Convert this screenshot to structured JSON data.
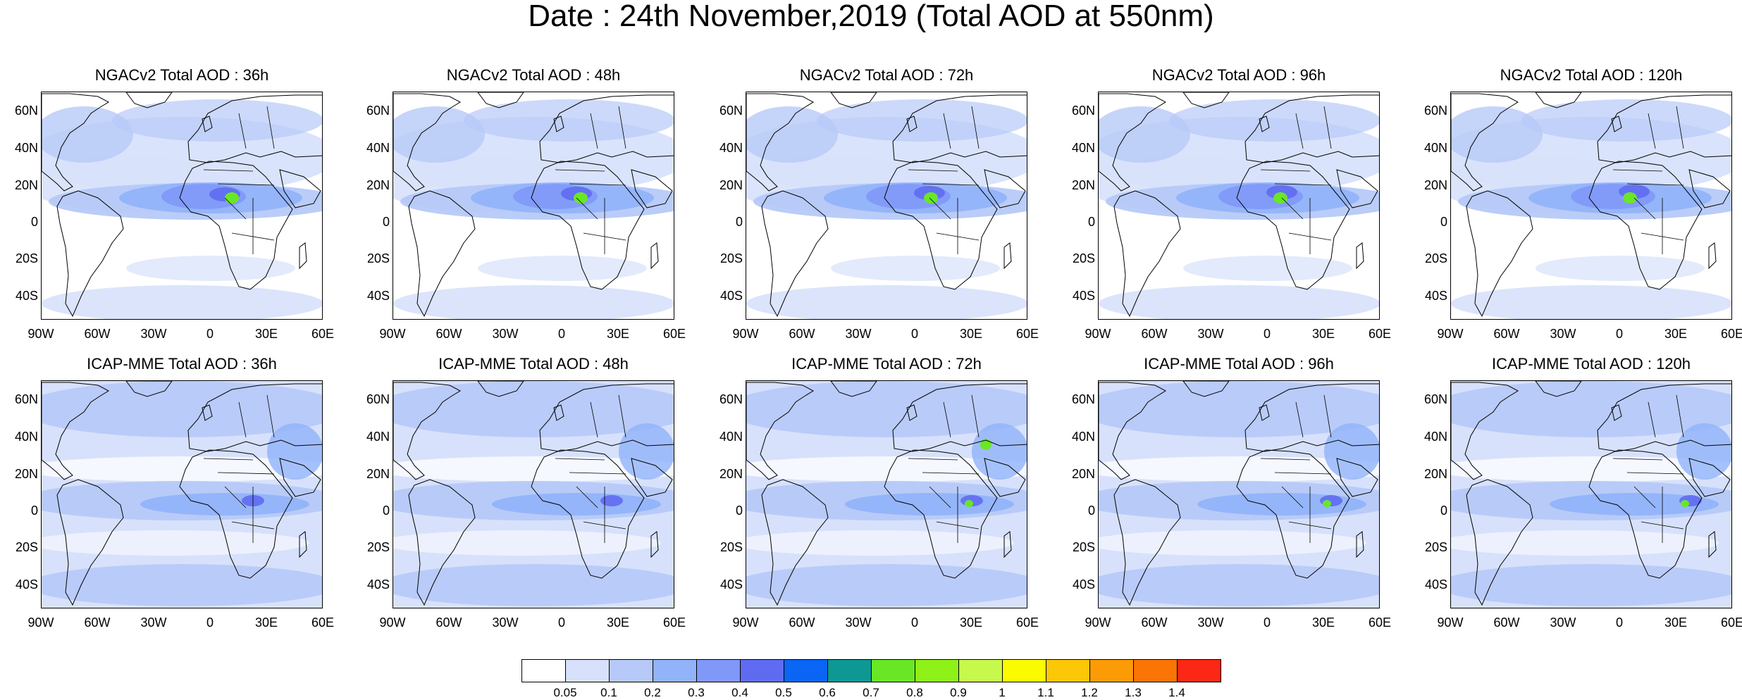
{
  "title": "Date : 24th November,2019 (Total AOD at 550nm)",
  "lat_labels": [
    "60N",
    "40N",
    "20N",
    "0",
    "20S",
    "40S"
  ],
  "lon_labels": [
    "90W",
    "60W",
    "30W",
    "0",
    "30E",
    "60E"
  ],
  "rows": [
    {
      "model": "NGACv2",
      "panels": [
        {
          "title": "NGACv2 Total AOD : 36h"
        },
        {
          "title": "NGACv2 Total AOD : 48h"
        },
        {
          "title": "NGACv2 Total AOD : 72h"
        },
        {
          "title": "NGACv2 Total AOD : 96h"
        },
        {
          "title": "NGACv2 Total AOD : 120h"
        }
      ]
    },
    {
      "model": "ICAP-MME",
      "panels": [
        {
          "title": "ICAP-MME Total AOD : 36h"
        },
        {
          "title": "ICAP-MME Total AOD : 48h"
        },
        {
          "title": "ICAP-MME Total AOD : 72h"
        },
        {
          "title": "ICAP-MME Total AOD : 96h"
        },
        {
          "title": "ICAP-MME Total AOD : 120h"
        }
      ]
    }
  ],
  "colorbar": {
    "colors": [
      "#ffffff",
      "#d7e1fb",
      "#b6c9f8",
      "#91b3fa",
      "#8098f8",
      "#5f6cf1",
      "#0b66f5",
      "#0e9893",
      "#69e726",
      "#8ef118",
      "#c7f84c",
      "#fbfb00",
      "#fbc707",
      "#fb9b06",
      "#fb7406",
      "#fb2816"
    ],
    "labels": [
      "0.05",
      "0.1",
      "0.2",
      "0.3",
      "0.4",
      "0.5",
      "0.6",
      "0.7",
      "0.8",
      "0.9",
      "1",
      "1.1",
      "1.2",
      "1.3",
      "1.4"
    ]
  },
  "map_colors": {
    "ocean_background": "#ffffff",
    "light_blue": "#d7e1fb",
    "mid_blue": "#b6c9f8",
    "blue": "#91b3fa",
    "dark_blue": "#8098f8",
    "violet": "#5f6cf1",
    "green": "#69e726",
    "coastline": "#000000"
  }
}
